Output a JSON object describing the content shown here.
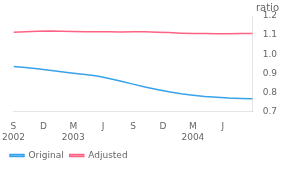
{
  "chart_data": {
    "type": "line",
    "title": "ratio",
    "x": [
      0,
      1,
      2,
      3,
      4,
      5,
      6,
      7,
      8,
      9,
      10,
      11,
      12,
      13,
      14,
      15,
      16,
      17,
      18,
      19,
      20
    ],
    "series": [
      {
        "name": "Original",
        "values": [
          0.935,
          0.93,
          0.923,
          0.916,
          0.908,
          0.9,
          0.893,
          0.885,
          0.872,
          0.858,
          0.843,
          0.828,
          0.815,
          0.803,
          0.793,
          0.785,
          0.778,
          0.774,
          0.77,
          0.768,
          0.766
        ]
      },
      {
        "name": "Adjusted",
        "values": [
          1.115,
          1.118,
          1.12,
          1.121,
          1.12,
          1.119,
          1.118,
          1.118,
          1.117,
          1.116,
          1.118,
          1.117,
          1.115,
          1.113,
          1.11,
          1.108,
          1.108,
          1.107,
          1.107,
          1.108,
          1.108
        ]
      }
    ],
    "xlim": [
      0,
      20
    ],
    "xticks": [
      {
        "value": 0,
        "label": "S\n2002"
      },
      {
        "value": 2.5,
        "label": "D"
      },
      {
        "value": 5,
        "label": "M\n2003"
      },
      {
        "value": 7.5,
        "label": "J"
      },
      {
        "value": 10,
        "label": "S"
      },
      {
        "value": 12.5,
        "label": "D"
      },
      {
        "value": 15,
        "label": "M\n2004"
      },
      {
        "value": 17.5,
        "label": "J"
      }
    ],
    "ylim": [
      0.7,
      1.2
    ],
    "yticks": [
      0.7,
      0.8,
      0.9,
      {
        "value": 1.0,
        "label": "1.0"
      },
      1.1,
      1.2
    ],
    "grid": false,
    "legend": "lower left"
  }
}
